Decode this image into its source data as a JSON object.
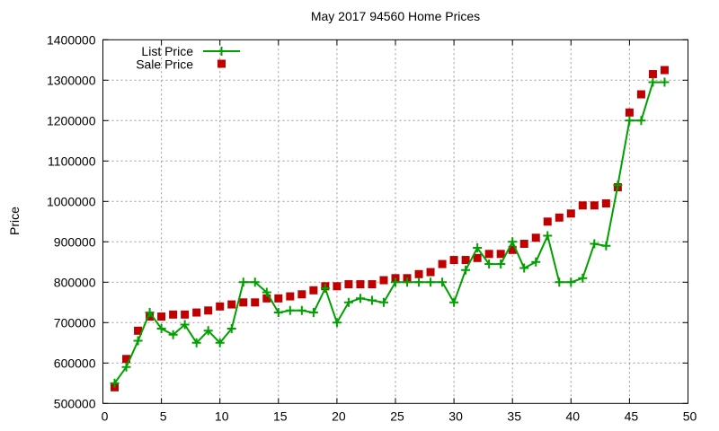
{
  "chart_data": {
    "type": "line",
    "title": "May 2017 94560 Home Prices",
    "xlabel": "",
    "ylabel": "Price",
    "xlim": [
      0,
      50
    ],
    "ylim": [
      500000,
      1400000
    ],
    "x_tick_step": 5,
    "y_tick_step": 100000,
    "x_tick_labels": [
      "0",
      "5",
      "10",
      "15",
      "20",
      "25",
      "30",
      "35",
      "40",
      "45",
      "50"
    ],
    "y_tick_labels": [
      "500000",
      "600000",
      "700000",
      "800000",
      "900000",
      "1000000",
      "1100000",
      "1200000",
      "1300000",
      "1400000"
    ],
    "grid": true,
    "legend_position": "top-left-inside",
    "x": [
      1,
      2,
      3,
      4,
      5,
      6,
      7,
      8,
      9,
      10,
      11,
      12,
      13,
      14,
      15,
      16,
      17,
      18,
      19,
      20,
      21,
      22,
      23,
      24,
      25,
      26,
      27,
      28,
      29,
      30,
      31,
      32,
      33,
      34,
      35,
      36,
      37,
      38,
      39,
      40,
      41,
      42,
      43,
      44,
      45,
      46,
      47,
      48
    ],
    "series": [
      {
        "name": "List Price",
        "style": "line-with-plus-markers",
        "color": "#00A000",
        "values": [
          550000,
          590000,
          655000,
          725000,
          685000,
          670000,
          695000,
          650000,
          680000,
          650000,
          685000,
          800000,
          800000,
          775000,
          725000,
          730000,
          730000,
          725000,
          785000,
          700000,
          750000,
          760000,
          755000,
          750000,
          800000,
          800000,
          800000,
          800000,
          800000,
          750000,
          830000,
          885000,
          845000,
          845000,
          900000,
          835000,
          850000,
          915000,
          800000,
          800000,
          810000,
          895000,
          890000,
          1040000,
          1200000,
          1200000,
          1295000,
          1295000
        ]
      },
      {
        "name": "Sale Price",
        "style": "filled-squares",
        "color": "#C00000",
        "values": [
          540000,
          610000,
          680000,
          715000,
          715000,
          720000,
          720000,
          725000,
          730000,
          740000,
          745000,
          750000,
          750000,
          760000,
          760000,
          765000,
          770000,
          780000,
          790000,
          790000,
          795000,
          795000,
          795000,
          805000,
          810000,
          810000,
          820000,
          825000,
          845000,
          855000,
          855000,
          860000,
          870000,
          870000,
          880000,
          895000,
          910000,
          950000,
          960000,
          970000,
          990000,
          990000,
          995000,
          1035000,
          1220000,
          1265000,
          1315000,
          1325000
        ]
      }
    ],
    "colors": {
      "background": "#FFFFFF",
      "frame": "#000000",
      "grid": "#999999",
      "text": "#000000"
    }
  }
}
